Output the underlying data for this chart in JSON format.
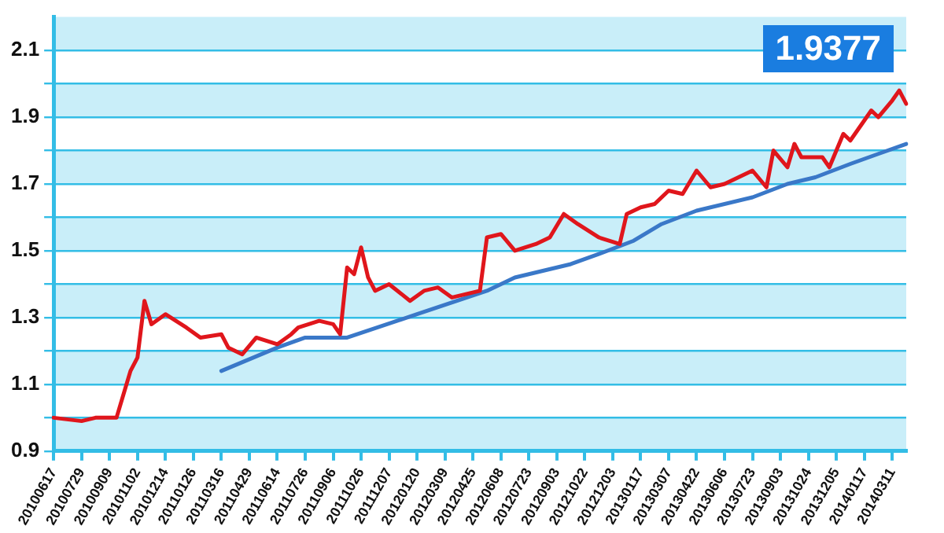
{
  "chart_data": {
    "type": "line",
    "annotations": [
      "1.9377"
    ],
    "categories": [
      "20100617",
      null,
      null,
      null,
      "20100729",
      null,
      null,
      null,
      "20100909",
      null,
      null,
      null,
      "20101102",
      null,
      null,
      null,
      "20101214",
      null,
      null,
      null,
      "20110126",
      null,
      null,
      null,
      "20110316",
      null,
      null,
      null,
      "20110429",
      null,
      null,
      null,
      "20110614",
      null,
      null,
      null,
      "20110726",
      null,
      null,
      null,
      "20110906",
      null,
      null,
      null,
      "20111026",
      null,
      null,
      null,
      "20111207",
      null,
      null,
      null,
      "20120120",
      null,
      null,
      null,
      "20120309",
      null,
      null,
      null,
      "20120425",
      null,
      null,
      null,
      "20120608",
      null,
      null,
      null,
      "20120723",
      null,
      null,
      null,
      "20120903",
      null,
      null,
      null,
      "20121022",
      null,
      null,
      null,
      "20121203",
      null,
      null,
      null,
      "20130117",
      null,
      null,
      null,
      "20130307",
      null,
      null,
      null,
      "20130422",
      null,
      null,
      null,
      "20130606",
      null,
      null,
      null,
      "20130723",
      null,
      null,
      null,
      "20130903",
      null,
      null,
      null,
      "20131024",
      null,
      null,
      null,
      "20131205",
      null,
      null,
      null,
      "20140117",
      null,
      null,
      null,
      "20140311",
      null,
      null
    ],
    "series": [
      {
        "color": "#e0161c",
        "values": [
          1.0,
          null,
          null,
          null,
          0.99,
          null,
          1.0,
          null,
          null,
          1.0,
          null,
          1.14,
          1.18,
          1.35,
          1.28,
          null,
          1.31,
          null,
          null,
          1.27,
          null,
          1.24,
          null,
          null,
          1.25,
          1.21,
          null,
          1.19,
          null,
          1.24,
          null,
          null,
          1.22,
          null,
          1.25,
          1.27,
          null,
          null,
          1.29,
          null,
          1.28,
          1.25,
          1.45,
          1.43,
          1.51,
          1.42,
          1.38,
          null,
          1.4,
          null,
          null,
          1.35,
          null,
          1.38,
          null,
          1.39,
          null,
          1.36,
          null,
          null,
          null,
          1.38,
          1.54,
          null,
          1.55,
          null,
          1.5,
          null,
          null,
          1.52,
          null,
          1.54,
          null,
          1.61,
          null,
          1.58,
          null,
          null,
          1.54,
          null,
          null,
          1.52,
          1.61,
          null,
          1.63,
          null,
          1.64,
          null,
          1.68,
          null,
          1.67,
          null,
          1.74,
          null,
          1.69,
          null,
          1.7,
          null,
          1.72,
          null,
          1.74,
          null,
          1.69,
          1.8,
          null,
          1.75,
          1.82,
          1.78,
          null,
          null,
          1.78,
          1.75,
          null,
          1.85,
          1.83,
          null,
          null,
          1.92,
          1.9,
          null,
          1.95,
          1.98,
          1.94
        ]
      },
      {
        "color": "#3a78c8",
        "values": [
          null,
          null,
          null,
          null,
          null,
          null,
          null,
          null,
          null,
          null,
          null,
          null,
          null,
          null,
          null,
          null,
          null,
          null,
          null,
          null,
          null,
          null,
          null,
          null,
          1.14,
          null,
          null,
          null,
          null,
          null,
          null,
          null,
          1.21,
          null,
          null,
          null,
          1.24,
          null,
          null,
          null,
          null,
          null,
          1.24,
          null,
          null,
          null,
          null,
          null,
          null,
          null,
          null,
          null,
          1.31,
          null,
          null,
          null,
          null,
          null,
          null,
          null,
          null,
          null,
          1.38,
          null,
          null,
          null,
          1.42,
          null,
          null,
          null,
          null,
          null,
          null,
          null,
          1.46,
          null,
          null,
          null,
          1.49,
          null,
          null,
          null,
          null,
          1.53,
          null,
          null,
          null,
          1.58,
          null,
          null,
          null,
          null,
          1.62,
          null,
          null,
          null,
          null,
          null,
          null,
          null,
          1.66,
          null,
          null,
          null,
          null,
          1.7,
          null,
          null,
          null,
          1.72,
          null,
          null,
          null,
          null,
          1.76,
          null,
          null,
          null,
          1.79,
          null,
          null,
          null,
          1.82
        ]
      }
    ],
    "ylim": [
      0.9,
      2.2
    ],
    "yticks": [
      0.9,
      {
        "value": 1.0,
        "label": null
      },
      1.1,
      {
        "value": 1.2,
        "label": null
      },
      1.3,
      {
        "value": 1.4,
        "label": null
      },
      1.5,
      {
        "value": 1.6,
        "label": null
      },
      1.7,
      {
        "value": 1.8,
        "label": null
      },
      1.9,
      {
        "value": 2.0,
        "label": null
      },
      2.1
    ],
    "bands": [
      {
        "axis": "y",
        "from": 0.9,
        "to": 1.0,
        "color": "#c9eef9"
      },
      {
        "axis": "y",
        "from": 1.1,
        "to": 1.2,
        "color": "#c9eef9"
      },
      {
        "axis": "y",
        "from": 1.3,
        "to": 1.4,
        "color": "#c9eef9"
      },
      {
        "axis": "y",
        "from": 1.5,
        "to": 1.6,
        "color": "#c9eef9"
      },
      {
        "axis": "y",
        "from": 1.7,
        "to": 1.8,
        "color": "#c9eef9"
      },
      {
        "axis": "y",
        "from": 1.9,
        "to": 2.0,
        "color": "#c9eef9"
      },
      {
        "axis": "y",
        "from": 2.1,
        "to": 2.2,
        "color": "#c9eef9"
      }
    ],
    "grid": "y",
    "legend": false,
    "marker": "none",
    "line_style": "solid"
  }
}
